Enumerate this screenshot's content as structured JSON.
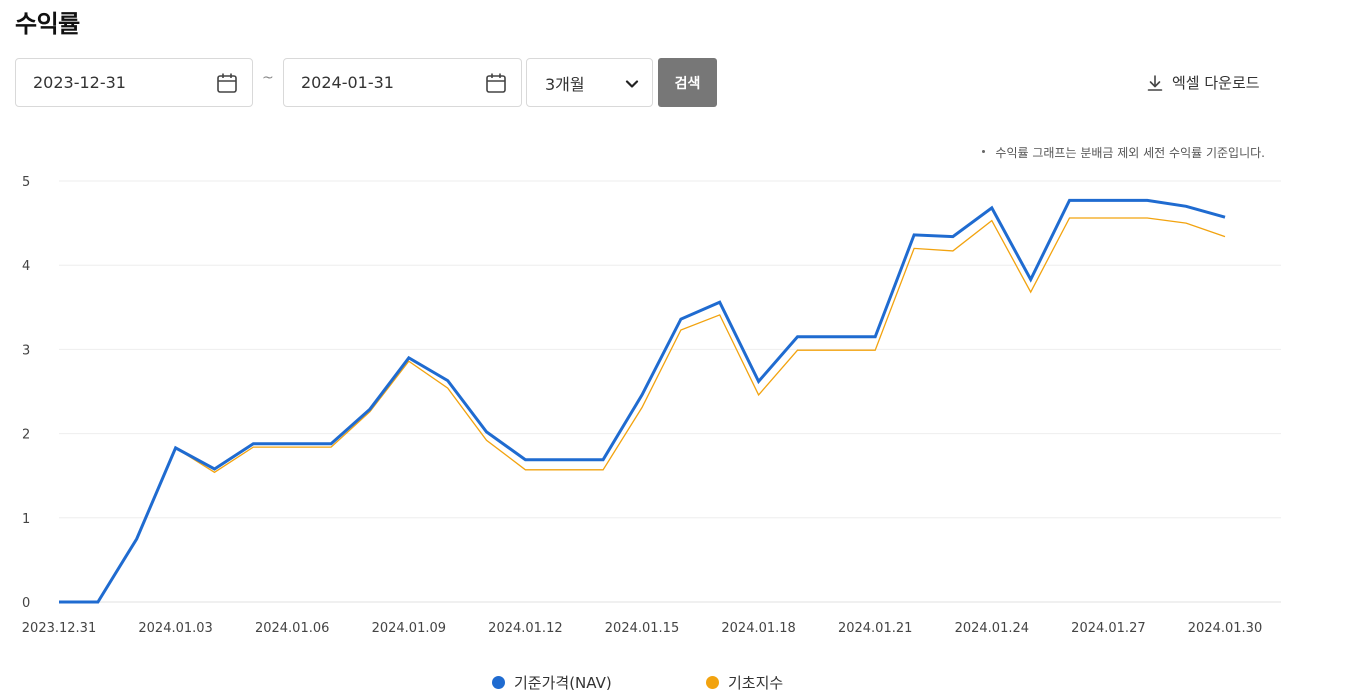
{
  "header": {
    "title": "수익률"
  },
  "filters": {
    "start_date": "2023-12-31",
    "tilde": "~",
    "end_date": "2024-01-31",
    "period": "3개월",
    "search_label": "검색"
  },
  "toolbar": {
    "excel_label": "엑셀 다운로드"
  },
  "note": "수익률 그래프는 분배금 제외 세전 수익률 기준입니다.",
  "colors": {
    "nav": "#1f6bd0",
    "base": "#f2a30f",
    "grid": "#eeeeee"
  },
  "icons": {
    "calendar": "calendar-icon",
    "chevron": "chevron-down-icon",
    "download": "download-icon"
  },
  "chart_data": {
    "type": "line",
    "x": [
      "2023.12.31",
      "2024.01.01",
      "2024.01.02",
      "2024.01.03",
      "2024.01.04",
      "2024.01.05",
      "2024.01.06",
      "2024.01.07",
      "2024.01.08",
      "2024.01.09",
      "2024.01.10",
      "2024.01.11",
      "2024.01.12",
      "2024.01.13",
      "2024.01.14",
      "2024.01.15",
      "2024.01.16",
      "2024.01.17",
      "2024.01.18",
      "2024.01.19",
      "2024.01.20",
      "2024.01.21",
      "2024.01.22",
      "2024.01.23",
      "2024.01.24",
      "2024.01.25",
      "2024.01.26",
      "2024.01.27",
      "2024.01.28",
      "2024.01.29",
      "2024.01.30"
    ],
    "x_tick_labels": [
      "2023.12.31",
      "2024.01.03",
      "2024.01.06",
      "2024.01.09",
      "2024.01.12",
      "2024.01.15",
      "2024.01.18",
      "2024.01.21",
      "2024.01.24",
      "2024.01.27",
      "2024.01.30"
    ],
    "series": [
      {
        "name": "기준가격(NAV)",
        "values": [
          0,
          0,
          0.75,
          1.83,
          1.58,
          1.88,
          1.88,
          1.88,
          2.29,
          2.9,
          2.63,
          2.02,
          1.69,
          1.69,
          1.69,
          2.46,
          3.36,
          3.56,
          2.62,
          3.15,
          3.15,
          3.15,
          4.36,
          4.34,
          4.68,
          3.83,
          4.77,
          4.77,
          4.77,
          4.7,
          4.57
        ]
      },
      {
        "name": "기초지수",
        "values": [
          0,
          0,
          0.75,
          1.83,
          1.54,
          1.84,
          1.84,
          1.84,
          2.26,
          2.86,
          2.54,
          1.92,
          1.57,
          1.57,
          1.57,
          2.31,
          3.23,
          3.41,
          2.46,
          2.99,
          2.99,
          2.99,
          4.2,
          4.17,
          4.53,
          3.68,
          4.56,
          4.56,
          4.56,
          4.5,
          4.34
        ]
      }
    ],
    "yticks": [
      0,
      1,
      2,
      3,
      4,
      5
    ],
    "ylim": [
      0,
      5
    ],
    "grid": true,
    "legend_position": "bottom-center"
  }
}
